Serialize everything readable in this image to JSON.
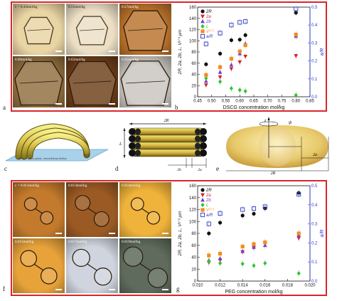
{
  "panels": {
    "a": {
      "letter": "a",
      "images": [
        {
          "label": "c = 0.43mol/kg",
          "bg": "#e9d4a4",
          "fg": "dark"
        },
        {
          "label": "0.51mol/kg",
          "bg": "#ecdfc5",
          "fg": "dark"
        },
        {
          "label": "0.57mol/kg",
          "bg": "#b8712a",
          "fg": "light"
        },
        {
          "label": "0.60mol/kg",
          "bg": "#8f6d3d",
          "fg": "light"
        },
        {
          "label": "0.62mol/kg",
          "bg": "#6b3d18",
          "fg": "light"
        },
        {
          "label": "0.65mol/kg",
          "bg": "#c8c4bd",
          "fg": "light"
        }
      ]
    },
    "b": {
      "letter": "b"
    },
    "c": {
      "letter": "c",
      "caption": "Bottom glass plate, viewed from below"
    },
    "d": {
      "letter": "d",
      "label_2R": "2R",
      "label_L": "L",
      "label_2b": "2b",
      "label_2a": "2a"
    },
    "e": {
      "letter": "e",
      "label_z": "z",
      "label_psi": "ψ",
      "label_2R": "2R",
      "label_2a": "2a"
    },
    "f": {
      "letter": "f",
      "images": [
        {
          "label": "c = 0.011mol/kg",
          "bg": "#c37a2c",
          "fg": "light"
        },
        {
          "label": "0.013mol/kg",
          "bg": "#9b5a24",
          "fg": "light"
        },
        {
          "label": "0.014mol/kg",
          "bg": "#efb23a",
          "fg": "light"
        },
        {
          "label": "0.015mol/kg",
          "bg": "#e7a23a",
          "fg": "light"
        },
        {
          "label": "0.017mol/kg",
          "bg": "#cfd4de",
          "fg": "light"
        },
        {
          "label": "0.019mol/kg",
          "bg": "#5f6b5c",
          "fg": "light"
        }
      ]
    },
    "g": {
      "letter": "g"
    }
  },
  "chart_data": [
    {
      "id": "b",
      "type": "scatter",
      "xlabel": "DSCG concentration mol/kg",
      "ylabel": "2R, 2a, 2b, L, V¹ᐟ³ μm",
      "ylabel2": "a/R",
      "xlim": [
        0.45,
        0.85
      ],
      "ylim": [
        0,
        160
      ],
      "ylim2": [
        0,
        0.5
      ],
      "xticks": [
        "0.45",
        "0.50",
        "0.55",
        "0.60",
        "0.65",
        "0.70",
        "0.75",
        "0.80",
        "0.85"
      ],
      "yticks": [
        "0",
        "20",
        "40",
        "60",
        "80",
        "100",
        "120",
        "140",
        "160"
      ],
      "yticks2": [
        "0.0",
        "0.1",
        "0.2",
        "0.3",
        "0.4",
        "0.5"
      ],
      "legend": "top-left",
      "series": [
        {
          "name": "2R",
          "marker": "circle",
          "color": "#111111",
          "axis": "left",
          "x": [
            0.48,
            0.53,
            0.57,
            0.6,
            0.62,
            0.8
          ],
          "y": [
            58,
            77,
            101,
            102,
            110,
            150
          ]
        },
        {
          "name": "2a",
          "marker": "tri-down",
          "color": "#d2202a",
          "axis": "left",
          "x": [
            0.48,
            0.53,
            0.57,
            0.6,
            0.62,
            0.8
          ],
          "y": [
            21,
            35,
            50,
            62,
            72,
            73
          ]
        },
        {
          "name": "2b",
          "marker": "tri-up",
          "color": "#7a3bc9",
          "axis": "left",
          "x": [
            0.48,
            0.53,
            0.57,
            0.6,
            0.62,
            0.8
          ],
          "y": [
            28,
            44,
            57,
            77,
            95,
            108
          ]
        },
        {
          "name": "L",
          "marker": "diamond",
          "color": "#2fc42f",
          "axis": "left",
          "x": [
            0.48,
            0.53,
            0.57,
            0.6,
            0.62,
            0.8
          ],
          "y": [
            33,
            27,
            15,
            12,
            10,
            3
          ]
        },
        {
          "name": "V¹ᐟ³",
          "marker": "square",
          "color": "#f58c1e",
          "axis": "left",
          "x": [
            0.48,
            0.53,
            0.57,
            0.6,
            0.62,
            0.8
          ],
          "y": [
            39,
            53,
            68,
            81,
            92,
            111
          ]
        },
        {
          "name": "a/R",
          "marker": "square-open",
          "color": "#2a3ac9",
          "axis": "right",
          "x": [
            0.48,
            0.53,
            0.57,
            0.6,
            0.62,
            0.8
          ],
          "y": [
            0.295,
            0.355,
            0.4,
            0.415,
            0.42,
            0.49
          ]
        }
      ]
    },
    {
      "id": "g",
      "type": "scatter",
      "xlabel": "PEG concentration mol/kg",
      "ylabel": "2R, 2a, 2b, L, V¹ᐟ³ μm",
      "ylabel2": "a/R",
      "xlim": [
        0.01,
        0.02
      ],
      "ylim": [
        0,
        160
      ],
      "ylim2": [
        0,
        0.5
      ],
      "xticks": [
        "0.010",
        "0.012",
        "0.014",
        "0.016",
        "0.018",
        "0.020"
      ],
      "yticks": [
        "0",
        "20",
        "40",
        "60",
        "80",
        "100",
        "120",
        "140",
        "160"
      ],
      "yticks2": [
        "0.0",
        "0.1",
        "0.2",
        "0.3",
        "0.4",
        "0.5"
      ],
      "legend": "top-left",
      "series": [
        {
          "name": "2R",
          "marker": "circle",
          "color": "#111111",
          "axis": "left",
          "x": [
            0.011,
            0.012,
            0.014,
            0.015,
            0.016,
            0.019
          ],
          "y": [
            80,
            98,
            110,
            113,
            122,
            148
          ]
        },
        {
          "name": "2a",
          "marker": "tri-down",
          "color": "#d2202a",
          "axis": "left",
          "x": [
            0.011,
            0.012,
            0.014,
            0.015,
            0.016,
            0.019
          ],
          "y": [
            31,
            35,
            49,
            56,
            63,
            72
          ]
        },
        {
          "name": "2b",
          "marker": "tri-up",
          "color": "#7a3bc9",
          "axis": "left",
          "x": [
            0.011,
            0.012,
            0.014,
            0.015,
            0.016,
            0.019
          ],
          "y": [
            35,
            38,
            50,
            57,
            60,
            77
          ]
        },
        {
          "name": "L",
          "marker": "diamond",
          "color": "#2fc42f",
          "axis": "left",
          "x": [
            0.011,
            0.012,
            0.014,
            0.015,
            0.016,
            0.019
          ],
          "y": [
            33,
            30,
            29,
            26,
            30,
            13
          ]
        },
        {
          "name": "V¹ᐟ³",
          "marker": "square",
          "color": "#f58c1e",
          "axis": "left",
          "x": [
            0.011,
            0.012,
            0.014,
            0.015,
            0.016,
            0.019
          ],
          "y": [
            43,
            46,
            58,
            62,
            65,
            80
          ]
        },
        {
          "name": "a/R",
          "marker": "square-open",
          "color": "#2a3ac9",
          "axis": "right",
          "x": [
            0.011,
            0.012,
            0.014,
            0.015,
            0.016,
            0.019
          ],
          "y": [
            0.3,
            0.355,
            0.375,
            0.38,
            0.39,
            0.455
          ]
        }
      ]
    }
  ]
}
